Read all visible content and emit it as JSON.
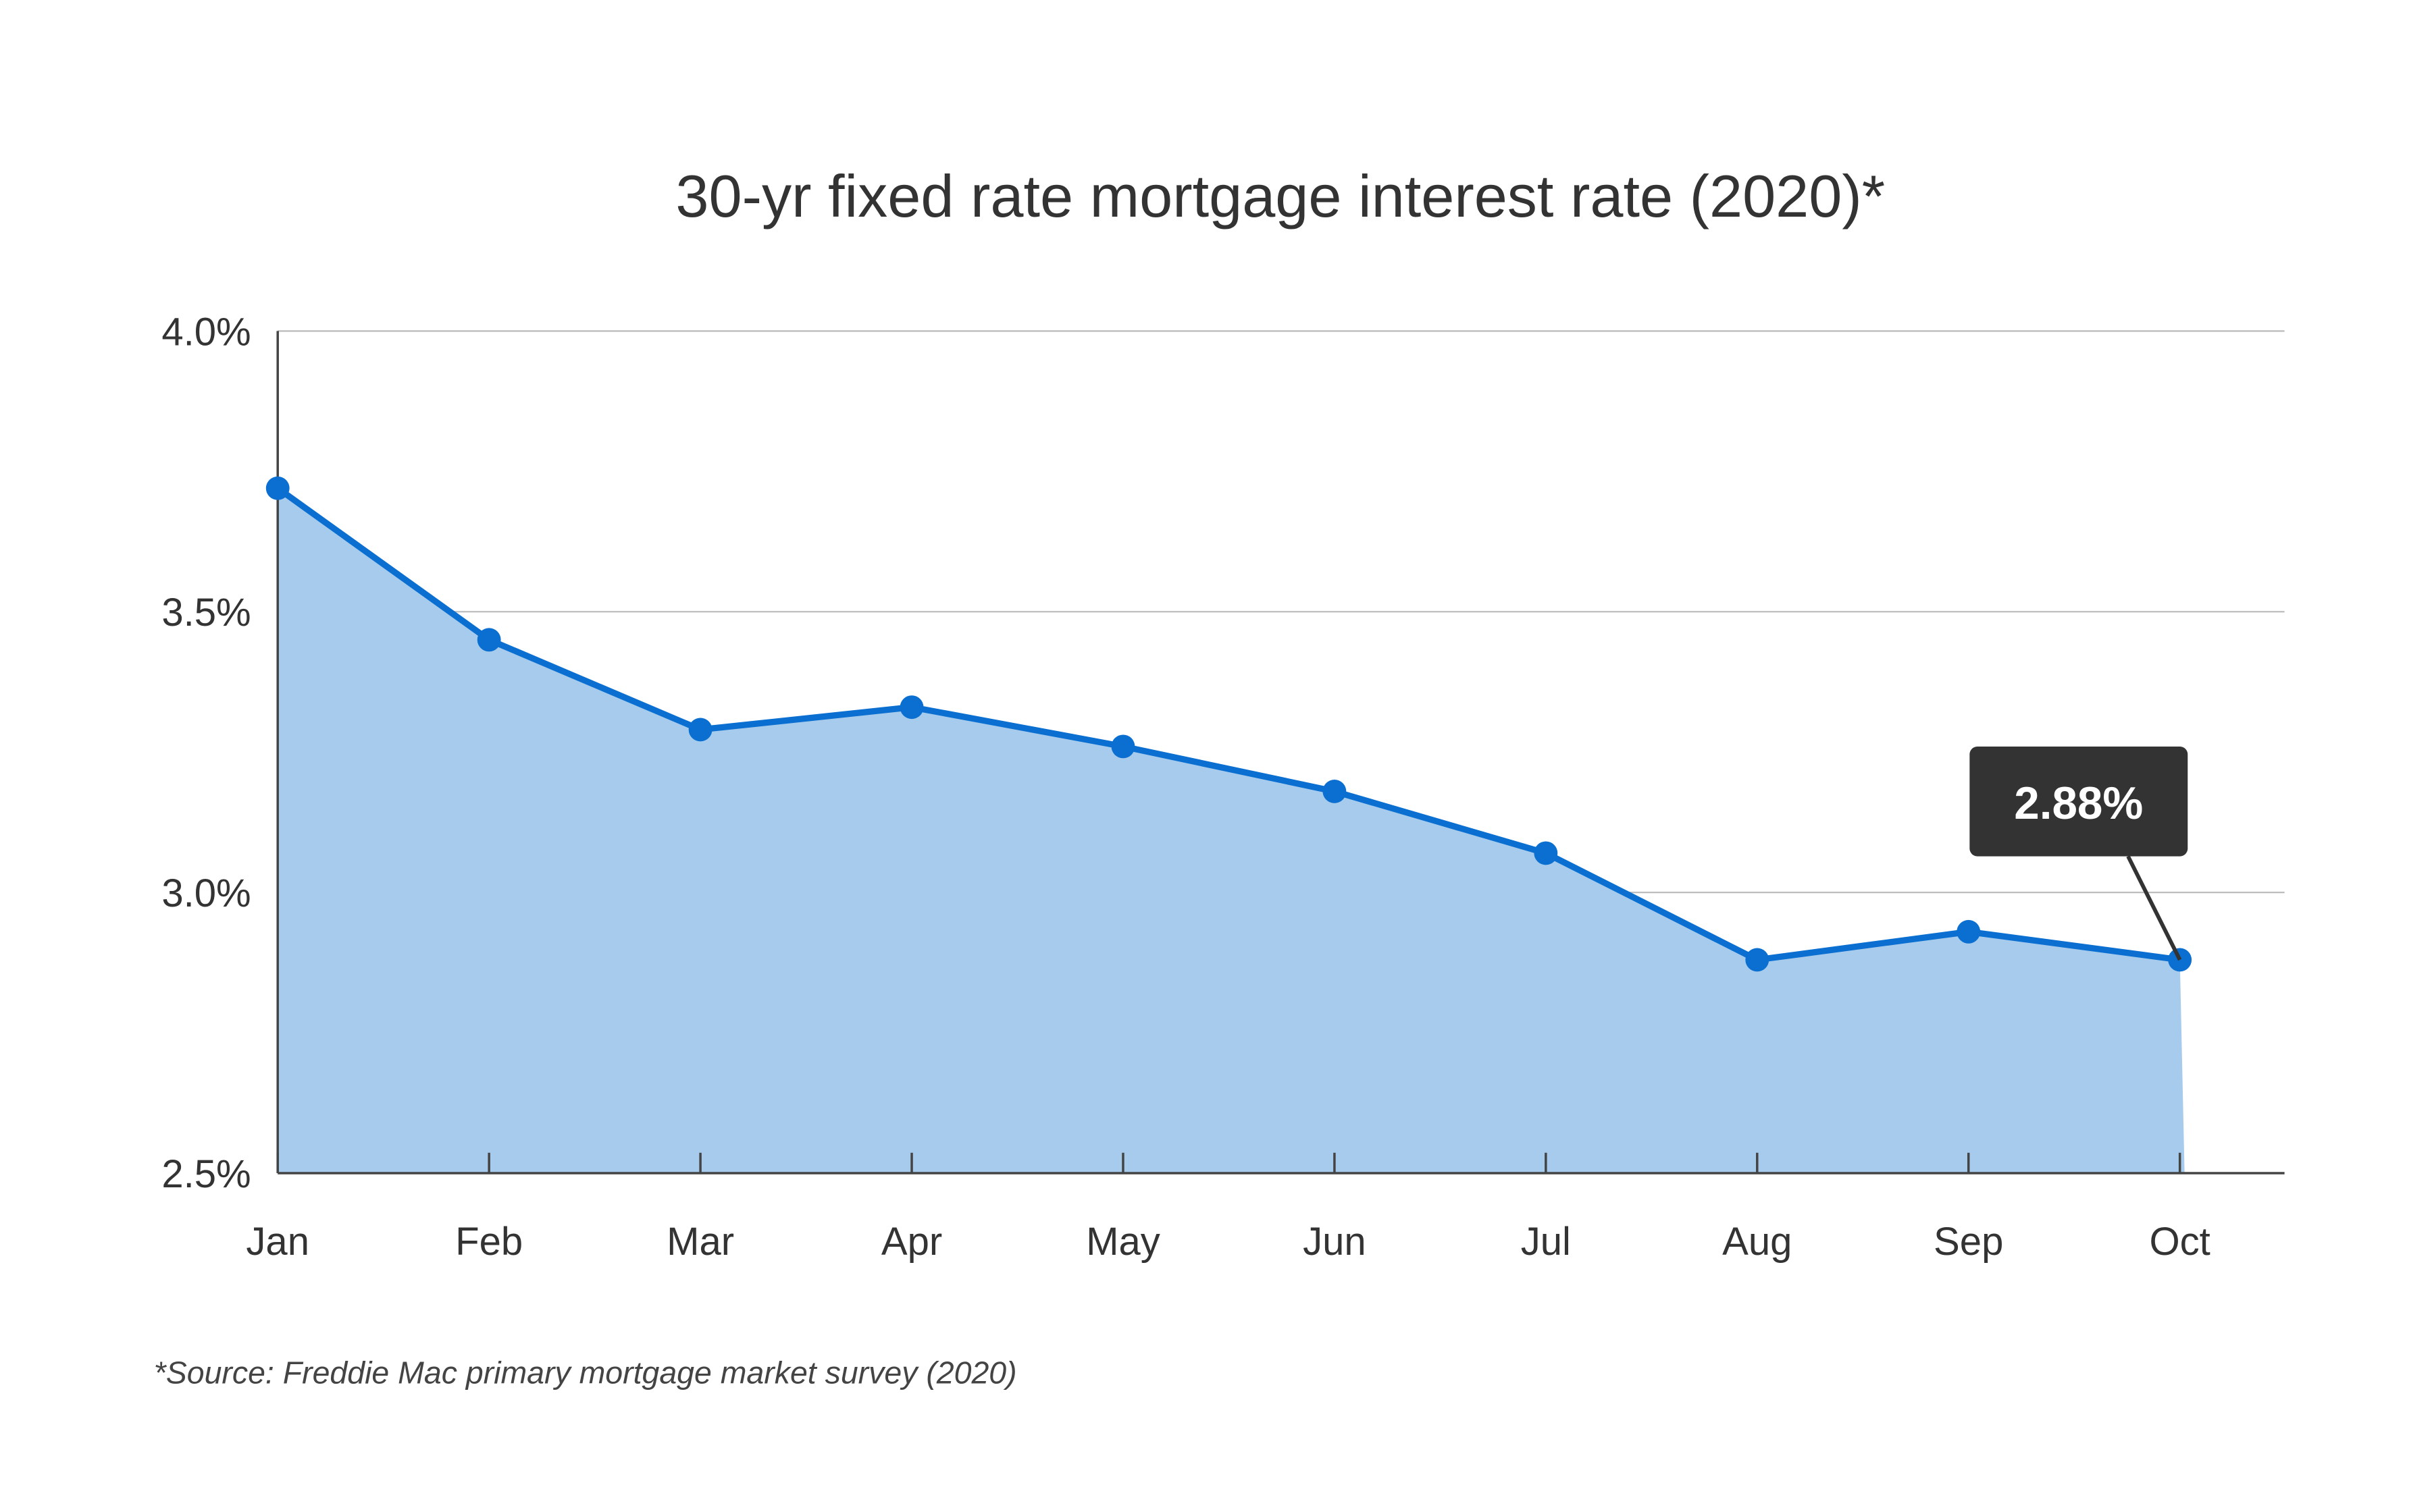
{
  "chart_data": {
    "type": "area",
    "title": "30-yr fixed rate mortgage interest rate (2020)*",
    "xlabel": "",
    "ylabel": "",
    "categories": [
      "Jan",
      "Feb",
      "Mar",
      "Apr",
      "May",
      "Jun",
      "Jul",
      "Aug",
      "Sep",
      "Oct"
    ],
    "series": [
      {
        "name": "30-yr fixed rate",
        "values": [
          3.72,
          3.45,
          3.29,
          3.33,
          3.26,
          3.18,
          3.07,
          2.88,
          2.93,
          2.88
        ]
      }
    ],
    "ylim": [
      2.5,
      4.0
    ],
    "yticks": [
      2.5,
      3.0,
      3.5,
      4.0
    ],
    "ytick_labels": [
      "2.5%",
      "3.0%",
      "3.5%",
      "4.0%"
    ],
    "grid": true,
    "annotation": {
      "label": "2.88%",
      "category": "Oct"
    },
    "footnote": "*Source: Freddie Mac primary mortgage market survey (2020)",
    "colors": {
      "line": "#0a6fd0",
      "fill": "#a6cbec",
      "grid": "#bdbdbd",
      "axis": "#444444",
      "annotation_bg": "#333333",
      "text": "#333333"
    }
  }
}
